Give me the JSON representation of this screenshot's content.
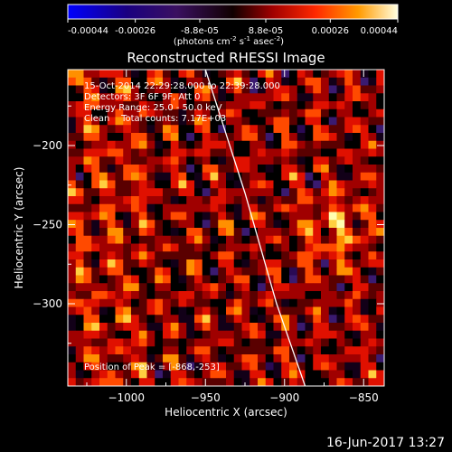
{
  "colorbar": {
    "ticks": [
      "-0.00044",
      "-0.00026",
      "-8.8e-05",
      "8.8e-05",
      "0.00026",
      "0.00044"
    ],
    "unit_parts": [
      "(photons cm",
      "-2",
      " s",
      "-1",
      " asec",
      "-2",
      ")"
    ],
    "min": -0.00044,
    "max": 0.00044
  },
  "chart_data": {
    "type": "heatmap",
    "title": "Reconstructed RHESSI Image",
    "xlabel": "Heliocentric X (arcsec)",
    "ylabel": "Heliocentric Y (arcsec)",
    "xlim": [
      -1037,
      -837
    ],
    "ylim": [
      -352,
      -152
    ],
    "x_ticks": [
      {
        "value": -1000,
        "label": "−1000"
      },
      {
        "value": -950,
        "label": "−950"
      },
      {
        "value": -900,
        "label": "−900"
      },
      {
        "value": -850,
        "label": "−850"
      }
    ],
    "y_ticks": [
      {
        "value": -200,
        "label": "−200"
      },
      {
        "value": -250,
        "label": "−250"
      },
      {
        "value": -300,
        "label": "−300"
      }
    ],
    "annotations": [
      "15-Oct-2014 22:29:28.000 to 22:39:28.000",
      "Detectors: 3F 6F 9F, Att 0",
      "Energy Range: 25.0 - 50.0 keV",
      "Clean    Total counts: 7.17E+03"
    ],
    "peak_label": "Position of Peak = [-868,-253]",
    "peak": [
      -868,
      -253
    ],
    "limb_points": [
      [
        -950,
        -152
      ],
      [
        -925,
        -230
      ],
      [
        -905,
        -300
      ],
      [
        -887,
        -352
      ]
    ],
    "colors": {
      "background": "#000000",
      "limb": "#ffffff",
      "text": "#ffffff"
    }
  },
  "timestamp": "16-Jun-2017 13:27"
}
